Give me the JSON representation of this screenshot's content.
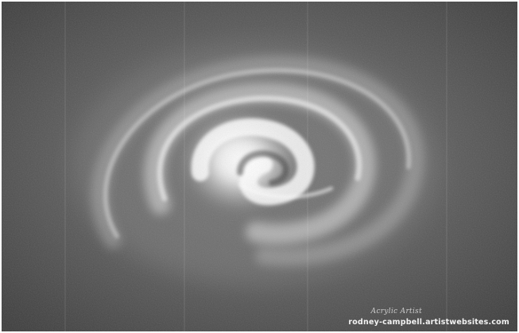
{
  "artwork": {
    "palette": {
      "background": "#5e5e5e",
      "background_dark": "#3a3a3a",
      "glow": "#ffffff",
      "arm": "#e6e6e6"
    }
  },
  "watermark": {
    "signature": "Acrylic Artist",
    "website": "rodney-campbell.artistwebsites.com"
  }
}
